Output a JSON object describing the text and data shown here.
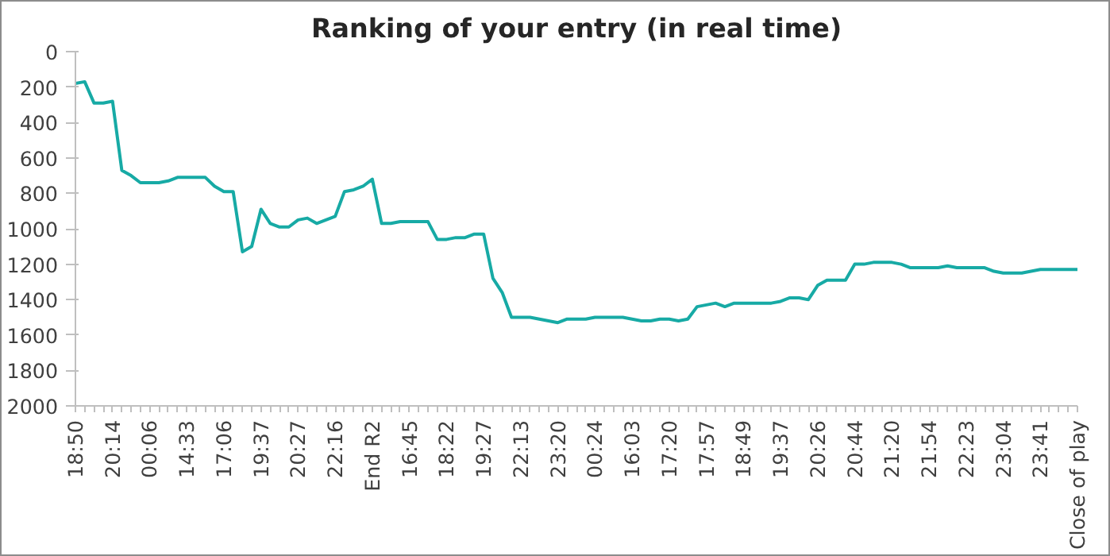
{
  "chart_data": {
    "type": "line",
    "title": "Ranking of your entry (in real time)",
    "categories": [
      "18:50",
      null,
      null,
      null,
      "20:14",
      null,
      null,
      null,
      "00:06",
      null,
      null,
      null,
      "14:33",
      null,
      null,
      null,
      "17:06",
      null,
      null,
      null,
      "19:37",
      null,
      null,
      null,
      "20:27",
      null,
      null,
      null,
      "22:16",
      null,
      null,
      null,
      "End R2",
      null,
      null,
      null,
      "16:45",
      null,
      null,
      null,
      "18:22",
      null,
      null,
      null,
      "19:27",
      null,
      null,
      null,
      "22:13",
      null,
      null,
      null,
      "23:20",
      null,
      null,
      null,
      "00:24",
      null,
      null,
      null,
      "16:03",
      null,
      null,
      null,
      "17:20",
      null,
      null,
      null,
      "17:57",
      null,
      null,
      null,
      "18:49",
      null,
      null,
      null,
      "19:37",
      null,
      null,
      null,
      "20:26",
      null,
      null,
      null,
      "20:44",
      null,
      null,
      null,
      "21:20",
      null,
      null,
      null,
      "21:54",
      null,
      null,
      null,
      "22:23",
      null,
      null,
      null,
      "23:04",
      null,
      null,
      null,
      "23:41",
      null,
      null,
      null,
      "Close of play"
    ],
    "series": [
      {
        "color": "#17aaa5",
        "values": [
          180,
          170,
          290,
          290,
          280,
          670,
          700,
          740,
          740,
          740,
          730,
          710,
          710,
          710,
          710,
          760,
          790,
          790,
          1130,
          1100,
          890,
          970,
          990,
          990,
          950,
          940,
          970,
          950,
          930,
          790,
          780,
          760,
          720,
          970,
          970,
          960,
          960,
          960,
          960,
          1060,
          1060,
          1050,
          1050,
          1030,
          1030,
          1280,
          1360,
          1500,
          1500,
          1500,
          1510,
          1520,
          1530,
          1510,
          1510,
          1510,
          1500,
          1500,
          1500,
          1500,
          1510,
          1520,
          1520,
          1510,
          1510,
          1520,
          1510,
          1440,
          1430,
          1420,
          1440,
          1420,
          1420,
          1420,
          1420,
          1420,
          1410,
          1390,
          1390,
          1400,
          1320,
          1290,
          1290,
          1290,
          1200,
          1200,
          1190,
          1190,
          1190,
          1200,
          1220,
          1220,
          1220,
          1220,
          1210,
          1220,
          1220,
          1220,
          1220,
          1240,
          1250,
          1250,
          1250,
          1240,
          1230,
          1230,
          1230,
          1230,
          1230
        ]
      }
    ],
    "ylim": [
      2000,
      0
    ],
    "yticks": [
      0,
      200,
      400,
      600,
      800,
      1000,
      1200,
      1400,
      1600,
      1800,
      2000
    ],
    "grid": false,
    "marker": "none",
    "line_style": "solid"
  }
}
